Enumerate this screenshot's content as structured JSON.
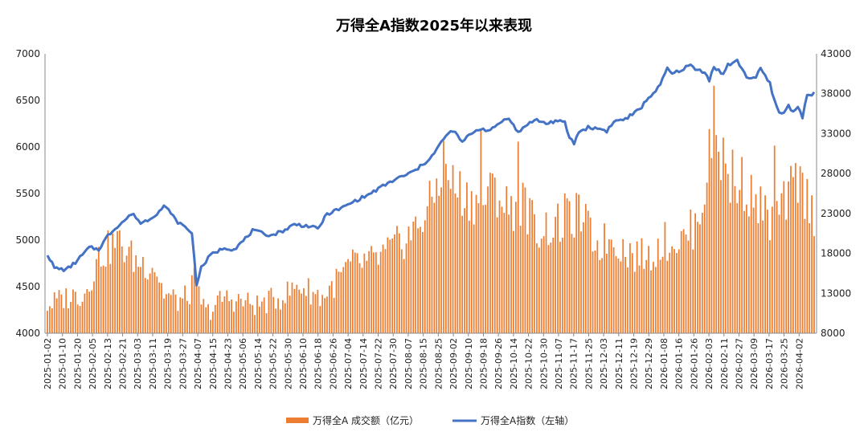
{
  "chart_data": {
    "type": "bar+line",
    "title": "万得全A指数2025年以来表现",
    "left_axis": {
      "ylim": [
        4000,
        7000
      ],
      "ticks": [
        4000,
        4500,
        5000,
        5500,
        6000,
        6500,
        7000
      ]
    },
    "right_axis": {
      "ylim": [
        8000,
        43000
      ],
      "ticks": [
        8000,
        13000,
        18000,
        23000,
        28000,
        33000,
        38000,
        43000
      ]
    },
    "x_tick_labels": [
      "2025-01-02",
      "2025-01-10",
      "2025-01-20",
      "2025-02-05",
      "2025-02-13",
      "2025-02-21",
      "2025-03-03",
      "2025-03-11",
      "2025-03-19",
      "2025-03-27",
      "2025-04-07",
      "2025-04-15",
      "2025-04-23",
      "2025-05-06",
      "2025-05-14",
      "2025-05-22",
      "2025-05-30",
      "2025-06-10",
      "2025-06-18",
      "2025-06-26",
      "2025-07-04",
      "2025-07-14",
      "2025-07-22",
      "2025-07-30",
      "2025-08-07",
      "2025-08-15",
      "2025-08-25",
      "2025-09-02",
      "2025-09-10",
      "2025-09-18",
      "2025-09-26",
      "2025-10-14",
      "2025-10-22",
      "2025-10-30",
      "2025-11-07",
      "2025-11-17",
      "2025-11-25",
      "2025-12-03",
      "2025-12-11",
      "2025-12-19",
      "2025-12-29",
      "2026-01-08",
      "2026-01-16",
      "2026-01-26",
      "2026-02-03",
      "2026-02-11",
      "2026-02-27",
      "2026-03-09",
      "2026-03-17",
      "2026-03-25",
      "2026-04-02"
    ],
    "grid": false,
    "legend_position": "bottom",
    "series": [
      {
        "name": "万得全A 成交额（亿元）",
        "kind": "bar",
        "axis": "right",
        "color": "#ED7D31",
        "knots": [
          [
            0,
            11500
          ],
          [
            8,
            12500
          ],
          [
            16,
            13000
          ],
          [
            22,
            17500
          ],
          [
            30,
            19500
          ],
          [
            38,
            17000
          ],
          [
            46,
            16500
          ],
          [
            50,
            13000
          ],
          [
            56,
            12000
          ],
          [
            60,
            12500
          ],
          [
            63,
            14500
          ],
          [
            68,
            10500
          ],
          [
            76,
            12500
          ],
          [
            90,
            11500
          ],
          [
            100,
            12500
          ],
          [
            108,
            14000
          ],
          [
            118,
            12500
          ],
          [
            130,
            16500
          ],
          [
            140,
            17000
          ],
          [
            148,
            18500
          ],
          [
            158,
            21000
          ],
          [
            165,
            24500
          ],
          [
            170,
            29500
          ],
          [
            174,
            26500
          ],
          [
            180,
            25000
          ],
          [
            186,
            24500
          ],
          [
            192,
            26000
          ],
          [
            198,
            23500
          ],
          [
            204,
            24500
          ],
          [
            210,
            21000
          ],
          [
            220,
            21500
          ],
          [
            228,
            23000
          ],
          [
            236,
            19000
          ],
          [
            242,
            20000
          ],
          [
            250,
            18000
          ],
          [
            258,
            17500
          ],
          [
            264,
            19500
          ],
          [
            272,
            19500
          ],
          [
            278,
            21500
          ],
          [
            282,
            26000
          ],
          [
            286,
            34000
          ],
          [
            292,
            26000
          ],
          [
            298,
            27000
          ],
          [
            304,
            24500
          ],
          [
            310,
            22000
          ],
          [
            316,
            24000
          ],
          [
            322,
            27500
          ],
          [
            328,
            23500
          ],
          [
            334,
            20500
          ],
          [
            340,
            19000
          ],
          [
            344,
            20000
          ],
          [
            348,
            19500
          ]
        ],
        "spikes": [
          [
            186,
            33500
          ],
          [
            192,
            27500
          ],
          [
            202,
            32000
          ],
          [
            222,
            25500
          ],
          [
            286,
            39000
          ],
          [
            290,
            32500
          ],
          [
            294,
            31000
          ],
          [
            312,
            31500
          ],
          [
            318,
            27000
          ],
          [
            336,
            22000
          ]
        ]
      },
      {
        "name": "万得全A指数（左轴）",
        "kind": "line",
        "axis": "left",
        "color": "#4472C4",
        "knots": [
          [
            0,
            4850
          ],
          [
            3,
            4700
          ],
          [
            8,
            4680
          ],
          [
            12,
            4760
          ],
          [
            18,
            4920
          ],
          [
            22,
            4900
          ],
          [
            26,
            5050
          ],
          [
            30,
            5150
          ],
          [
            34,
            5230
          ],
          [
            36,
            5280
          ],
          [
            38,
            5250
          ],
          [
            40,
            5180
          ],
          [
            44,
            5230
          ],
          [
            48,
            5310
          ],
          [
            50,
            5360
          ],
          [
            53,
            5300
          ],
          [
            55,
            5210
          ],
          [
            58,
            5160
          ],
          [
            60,
            5120
          ],
          [
            62,
            5080
          ],
          [
            64,
            4530
          ],
          [
            66,
            4700
          ],
          [
            70,
            4840
          ],
          [
            76,
            4920
          ],
          [
            80,
            4900
          ],
          [
            84,
            4990
          ],
          [
            88,
            5100
          ],
          [
            96,
            5050
          ],
          [
            102,
            5110
          ],
          [
            106,
            5170
          ],
          [
            112,
            5150
          ],
          [
            116,
            5120
          ],
          [
            120,
            5280
          ],
          [
            126,
            5340
          ],
          [
            132,
            5420
          ],
          [
            138,
            5490
          ],
          [
            144,
            5580
          ],
          [
            150,
            5660
          ],
          [
            154,
            5700
          ],
          [
            158,
            5750
          ],
          [
            162,
            5830
          ],
          [
            166,
            5930
          ],
          [
            170,
            6090
          ],
          [
            174,
            6180
          ],
          [
            178,
            6050
          ],
          [
            182,
            6150
          ],
          [
            186,
            6200
          ],
          [
            190,
            6170
          ],
          [
            194,
            6260
          ],
          [
            198,
            6320
          ],
          [
            200,
            6230
          ],
          [
            202,
            6150
          ],
          [
            206,
            6250
          ],
          [
            210,
            6290
          ],
          [
            214,
            6250
          ],
          [
            218,
            6280
          ],
          [
            222,
            6260
          ],
          [
            224,
            6100
          ],
          [
            226,
            6040
          ],
          [
            228,
            6160
          ],
          [
            232,
            6210
          ],
          [
            238,
            6190
          ],
          [
            240,
            6170
          ],
          [
            242,
            6240
          ],
          [
            244,
            6280
          ],
          [
            248,
            6300
          ],
          [
            254,
            6400
          ],
          [
            258,
            6530
          ],
          [
            260,
            6580
          ],
          [
            263,
            6660
          ],
          [
            266,
            6850
          ],
          [
            268,
            6780
          ],
          [
            272,
            6830
          ],
          [
            276,
            6880
          ],
          [
            278,
            6830
          ],
          [
            282,
            6810
          ],
          [
            284,
            6720
          ],
          [
            286,
            6860
          ],
          [
            290,
            6780
          ],
          [
            292,
            6880
          ],
          [
            296,
            6920
          ],
          [
            298,
            6850
          ],
          [
            300,
            6750
          ],
          [
            304,
            6740
          ],
          [
            306,
            6840
          ],
          [
            310,
            6680
          ],
          [
            312,
            6500
          ],
          [
            314,
            6360
          ],
          [
            316,
            6370
          ],
          [
            318,
            6440
          ],
          [
            320,
            6380
          ],
          [
            322,
            6440
          ],
          [
            324,
            6320
          ],
          [
            326,
            6550
          ],
          [
            328,
            6570
          ]
        ]
      }
    ]
  },
  "legend": [
    {
      "label": "万得全A 成交额（亿元）",
      "color": "#ED7D31"
    },
    {
      "label": "万得全A指数（左轴）",
      "color": "#4472C4"
    }
  ]
}
